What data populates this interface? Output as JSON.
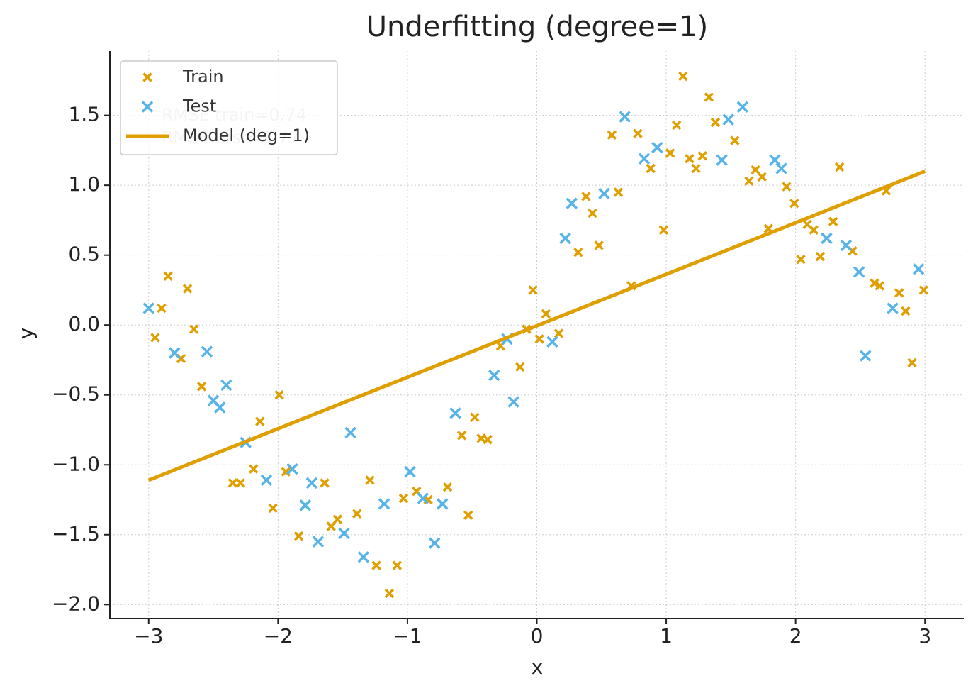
{
  "chart_data": {
    "type": "scatter",
    "title": "Underfitting (degree=1)",
    "x_label": "x",
    "y_label": "y",
    "xlim": [
      -3.3,
      3.3
    ],
    "ylim": [
      -2.1,
      1.96
    ],
    "xticks": [
      {
        "value": -3,
        "label": "−3"
      },
      {
        "value": -2,
        "label": "−2"
      },
      {
        "value": -1,
        "label": "−1"
      },
      0,
      1,
      2,
      3
    ],
    "yticks": [
      {
        "value": -2.0,
        "label": "−2.0"
      },
      {
        "value": -1.5,
        "label": "−1.5"
      },
      {
        "value": -1.0,
        "label": "−1.0"
      },
      {
        "value": -0.5,
        "label": "−0.5"
      },
      {
        "value": 0.0,
        "label": "0.0"
      },
      {
        "value": 0.5,
        "label": "0.5"
      },
      {
        "value": 1.0,
        "label": "1.0"
      },
      {
        "value": 1.5,
        "label": "1.5"
      }
    ],
    "grid": true,
    "legend": "upper left",
    "annotations": [
      "RMSE train=0.74",
      "RMSE test=0.77"
    ],
    "series": [
      {
        "name": "Train",
        "color": "#e09f00",
        "type": "scatter",
        "x": [
          -2.9,
          -2.95,
          -2.85,
          -2.75,
          -2.7,
          -2.65,
          -2.59,
          -2.35,
          -2.29,
          -2.19,
          -2.14,
          -2.04,
          -1.99,
          -1.94,
          -1.84,
          -1.64,
          -1.59,
          -1.54,
          -1.39,
          -1.29,
          -1.24,
          -1.14,
          -1.08,
          -1.03,
          -0.93,
          -0.84,
          -0.69,
          -0.58,
          -0.53,
          -0.48,
          -0.43,
          -0.38,
          -0.28,
          -0.13,
          -0.08,
          -0.03,
          0.02,
          0.07,
          0.17,
          0.32,
          0.38,
          0.43,
          0.48,
          0.58,
          0.63,
          0.73,
          0.78,
          0.88,
          0.98,
          1.03,
          1.08,
          1.13,
          1.18,
          1.23,
          1.28,
          1.33,
          1.38,
          1.53,
          1.64,
          1.69,
          1.74,
          1.79,
          1.93,
          1.99,
          2.04,
          2.09,
          2.14,
          2.19,
          2.29,
          2.34,
          2.44,
          2.61,
          2.65,
          2.7,
          2.8,
          2.85,
          2.9,
          2.99
        ],
        "values": [
          0.12,
          -0.09,
          0.35,
          -0.24,
          0.26,
          -0.03,
          -0.44,
          -1.13,
          -1.13,
          -1.03,
          -0.69,
          -1.31,
          -0.5,
          -1.05,
          -1.51,
          -1.13,
          -1.44,
          -1.39,
          -1.35,
          -1.11,
          -1.72,
          -1.92,
          -1.72,
          -1.24,
          -1.19,
          -1.25,
          -1.16,
          -0.79,
          -1.36,
          -0.66,
          -0.81,
          -0.82,
          -0.15,
          -0.3,
          -0.03,
          0.25,
          -0.1,
          0.08,
          -0.06,
          0.52,
          0.92,
          0.8,
          0.57,
          1.36,
          0.95,
          0.28,
          1.37,
          1.12,
          0.68,
          1.23,
          1.43,
          1.78,
          1.19,
          1.12,
          1.21,
          1.63,
          1.45,
          1.32,
          1.03,
          1.11,
          1.06,
          0.69,
          0.99,
          0.87,
          0.47,
          0.72,
          0.68,
          0.49,
          0.74,
          1.13,
          0.53,
          0.3,
          0.28,
          0.96,
          0.23,
          0.1,
          -0.27,
          0.25
        ]
      },
      {
        "name": "Test",
        "color": "#56b4e9",
        "type": "scatter",
        "x": [
          -3.0,
          -2.8,
          -2.55,
          -2.5,
          -2.45,
          -2.4,
          -2.25,
          -2.09,
          -1.89,
          -1.79,
          -1.74,
          -1.69,
          -1.49,
          -1.44,
          -1.34,
          -1.18,
          -0.98,
          -0.88,
          -0.79,
          -0.73,
          -0.63,
          -0.33,
          -0.23,
          -0.18,
          0.12,
          0.22,
          0.27,
          0.52,
          0.68,
          0.83,
          0.93,
          1.43,
          1.48,
          1.59,
          1.84,
          1.89,
          2.24,
          2.39,
          2.49,
          2.54,
          2.75,
          2.95
        ],
        "values": [
          0.12,
          -0.2,
          -0.19,
          -0.54,
          -0.59,
          -0.43,
          -0.84,
          -1.11,
          -1.03,
          -1.29,
          -1.13,
          -1.55,
          -1.49,
          -0.77,
          -1.66,
          -1.28,
          -1.05,
          -1.24,
          -1.56,
          -1.28,
          -0.63,
          -0.36,
          -0.1,
          -0.55,
          -0.12,
          0.62,
          0.87,
          0.94,
          1.49,
          1.19,
          1.27,
          1.18,
          1.47,
          1.56,
          1.18,
          1.12,
          0.62,
          0.57,
          0.38,
          -0.22,
          0.12,
          0.4
        ]
      },
      {
        "name": "Model (deg=1)",
        "color": "#e09f00",
        "type": "line",
        "x": [
          -3,
          3
        ],
        "values": [
          -1.11,
          1.1
        ]
      }
    ]
  }
}
